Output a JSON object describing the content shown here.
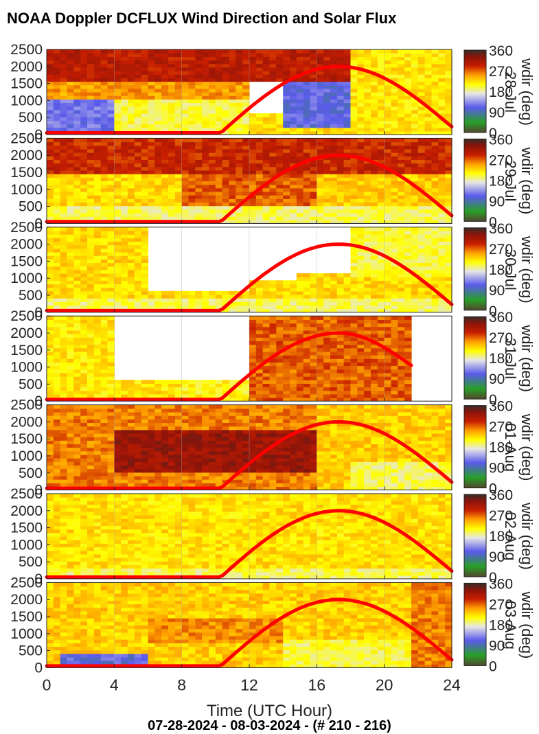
{
  "title": "NOAA Doppler DCFLUX Wind Direction and Solar Flux",
  "x_label": "Time (UTC Hour)",
  "subtitle": "07-28-2024 - 08-03-2024 - (# 210 - 216)",
  "colors": {
    "solar_curve": "#ff0000",
    "missing": "#ffffff"
  },
  "chart_data": [
    {
      "type": "heatmap",
      "panel": 1,
      "date_label": "28-Jul",
      "colorbar_label": "wdir (deg)",
      "x": [
        0,
        24
      ],
      "xticks": [
        0,
        4,
        8,
        12,
        16,
        20,
        24
      ],
      "ylim": [
        0,
        2500
      ],
      "yticks": [
        0,
        500,
        1000,
        1500,
        2000,
        2500
      ],
      "clim": [
        0,
        360
      ],
      "cticks": [
        0,
        90,
        180,
        270,
        360
      ],
      "zones": [
        [
          0,
          24,
          1600,
          2600,
          300
        ],
        [
          0,
          24,
          0,
          600,
          225
        ],
        [
          0,
          12,
          1000,
          1600,
          250
        ],
        [
          0,
          4,
          0,
          1000,
          120
        ],
        [
          4,
          12,
          0,
          1000,
          200
        ],
        [
          14,
          18,
          200,
          1600,
          110
        ],
        [
          18,
          24,
          0,
          2500,
          220
        ],
        [
          12,
          18,
          1600,
          2500,
          300
        ]
      ],
      "solar": {
        "start": 10.2,
        "peak_hour": 17.3,
        "end": 24,
        "peak": 2000,
        "end_value": 230
      }
    },
    {
      "type": "heatmap",
      "panel": 2,
      "date_label": "29-Jul",
      "colorbar_label": "wdir (deg)",
      "x": [
        0,
        24
      ],
      "xticks": [
        0,
        4,
        8,
        12,
        16,
        20,
        24
      ],
      "ylim": [
        0,
        2500
      ],
      "yticks": [
        0,
        500,
        1000,
        1500,
        2000,
        2500
      ],
      "clim": [
        0,
        360
      ],
      "cticks": [
        0,
        90,
        180,
        270,
        360
      ],
      "zones": [
        [
          0,
          24,
          1500,
          2600,
          290
        ],
        [
          0,
          24,
          0,
          500,
          195
        ],
        [
          0,
          8,
          500,
          1500,
          225
        ],
        [
          8,
          16,
          500,
          1500,
          270
        ],
        [
          16,
          24,
          500,
          1500,
          230
        ]
      ],
      "solar": {
        "start": 10.2,
        "peak_hour": 17.3,
        "end": 24,
        "peak": 2000,
        "end_value": 230
      }
    },
    {
      "type": "heatmap",
      "panel": 3,
      "date_label": "30-Jul",
      "colorbar_label": "wdir (deg)",
      "x": [
        0,
        24
      ],
      "xticks": [
        0,
        4,
        8,
        12,
        16,
        20,
        24
      ],
      "ylim": [
        0,
        2500
      ],
      "yticks": [
        0,
        500,
        1000,
        1500,
        2000,
        2500
      ],
      "clim": [
        0,
        360
      ],
      "cticks": [
        0,
        90,
        180,
        270,
        360
      ],
      "zones": [
        [
          0,
          24,
          0,
          2600,
          225
        ],
        [
          0,
          24,
          0,
          400,
          195
        ],
        [
          6,
          12,
          600,
          2600,
          -1
        ],
        [
          12,
          15,
          900,
          2600,
          -1
        ],
        [
          15,
          18,
          1100,
          2600,
          -1
        ],
        [
          18,
          24,
          1000,
          2600,
          200
        ]
      ],
      "solar": {
        "start": 10.2,
        "peak_hour": 17.3,
        "end": 24,
        "peak": 2000,
        "end_value": 230
      }
    },
    {
      "type": "heatmap",
      "panel": 4,
      "date_label": "31-Jul",
      "colorbar_label": "wdir (deg)",
      "x": [
        0,
        24
      ],
      "xticks": [
        0,
        4,
        8,
        12,
        16,
        20,
        24
      ],
      "ylim": [
        0,
        2500
      ],
      "yticks": [
        0,
        500,
        1000,
        1500,
        2000,
        2500
      ],
      "clim": [
        0,
        360
      ],
      "cticks": [
        0,
        90,
        180,
        270,
        360
      ],
      "zones": [
        [
          0,
          24,
          0,
          2600,
          220
        ],
        [
          4,
          12,
          600,
          2600,
          -1
        ],
        [
          8,
          12,
          0,
          600,
          210
        ],
        [
          12,
          21.5,
          0,
          2600,
          270
        ],
        [
          21.5,
          24,
          0,
          2600,
          -1
        ]
      ],
      "solar": {
        "start": 10.2,
        "peak_hour": 17.3,
        "end": 21.6,
        "peak": 2000,
        "end_value": 1050
      }
    },
    {
      "type": "heatmap",
      "panel": 5,
      "date_label": "01-Aug",
      "colorbar_label": "wdir (deg)",
      "x": [
        0,
        24
      ],
      "xticks": [
        0,
        4,
        8,
        12,
        16,
        20,
        24
      ],
      "ylim": [
        0,
        2500
      ],
      "yticks": [
        0,
        500,
        1000,
        1500,
        2000,
        2500
      ],
      "clim": [
        0,
        360
      ],
      "cticks": [
        0,
        90,
        180,
        270,
        360
      ],
      "zones": [
        [
          0,
          24,
          0,
          2600,
          260
        ],
        [
          4,
          16,
          500,
          1800,
          320
        ],
        [
          16,
          24,
          0,
          2600,
          230
        ],
        [
          18,
          24,
          0,
          800,
          195
        ]
      ],
      "solar": {
        "start": 10.2,
        "peak_hour": 17.3,
        "end": 24,
        "peak": 2000,
        "end_value": 230
      }
    },
    {
      "type": "heatmap",
      "panel": 6,
      "date_label": "02-Aug",
      "colorbar_label": "wdir (deg)",
      "x": [
        0,
        24
      ],
      "xticks": [
        0,
        4,
        8,
        12,
        16,
        20,
        24
      ],
      "ylim": [
        0,
        2500
      ],
      "yticks": [
        0,
        500,
        1000,
        1500,
        2000,
        2500
      ],
      "clim": [
        0,
        360
      ],
      "cticks": [
        0,
        90,
        180,
        270,
        360
      ],
      "zones": [
        [
          0,
          24,
          0,
          2600,
          222
        ],
        [
          0,
          24,
          0,
          300,
          195
        ]
      ],
      "solar": {
        "start": 10.2,
        "peak_hour": 17.3,
        "end": 24,
        "peak": 2000,
        "end_value": 230
      }
    },
    {
      "type": "heatmap",
      "panel": 7,
      "date_label": "03-Aug",
      "colorbar_label": "wdir (deg)",
      "x": [
        0,
        24
      ],
      "xticks": [
        0,
        4,
        8,
        12,
        16,
        20,
        24
      ],
      "ylim": [
        0,
        2500
      ],
      "yticks": [
        0,
        500,
        1000,
        1500,
        2000,
        2500
      ],
      "clim": [
        0,
        360
      ],
      "cticks": [
        0,
        90,
        180,
        270,
        360
      ],
      "zones": [
        [
          0,
          24,
          0,
          2600,
          230
        ],
        [
          6,
          14,
          700,
          1500,
          255
        ],
        [
          1,
          6,
          0,
          400,
          110
        ],
        [
          14,
          24,
          0,
          800,
          200
        ],
        [
          21.5,
          24,
          0,
          2600,
          260
        ]
      ],
      "solar": {
        "start": 10.2,
        "peak_hour": 17.3,
        "end": 24,
        "peak": 2000,
        "end_value": 230
      }
    }
  ]
}
